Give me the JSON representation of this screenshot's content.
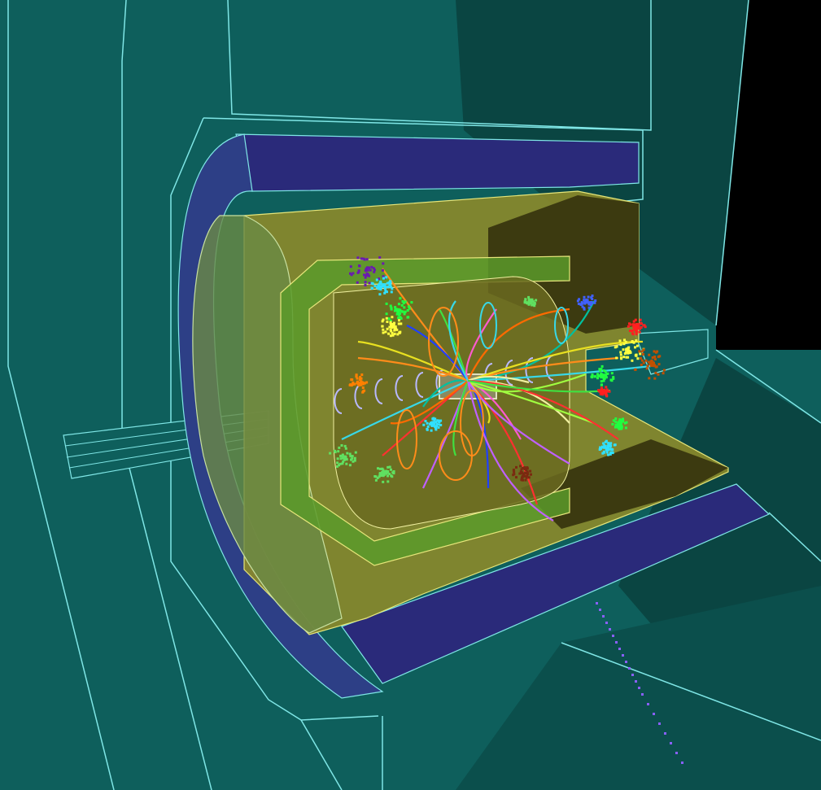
{
  "scene": {
    "background": "#000000",
    "outer_shell_color": "#0e5f5c",
    "outer_shell_dark": "#0a4542",
    "outline_color": "#7fe6e6",
    "magnet_color": "#2a2a7a",
    "magnet_light": "#3a3ab0",
    "calorimeter_color": "#8c8a2a",
    "calorimeter_light": "#b4b23a",
    "endcap_color": "#5b7a3a",
    "inner_dark": "#2a2a10"
  },
  "tracks": {
    "palette": [
      "#ff8c1a",
      "#e8e020",
      "#38d8e8",
      "#ff3030",
      "#c060ff",
      "#40e040",
      "#2040ff",
      "#ff5ad0",
      "#f0f0a0",
      "#a0ff40",
      "#ff6a00",
      "#00c0a0"
    ]
  },
  "hit_clusters": {
    "palette": [
      "#6a1ab0",
      "#8020e0",
      "#30e0ff",
      "#ff2020",
      "#20ff40",
      "#ff8000",
      "#c05000",
      "#4060ff",
      "#ffff40",
      "#60e060",
      "#7a2a10"
    ]
  },
  "icons": [
    "detector-icon"
  ]
}
